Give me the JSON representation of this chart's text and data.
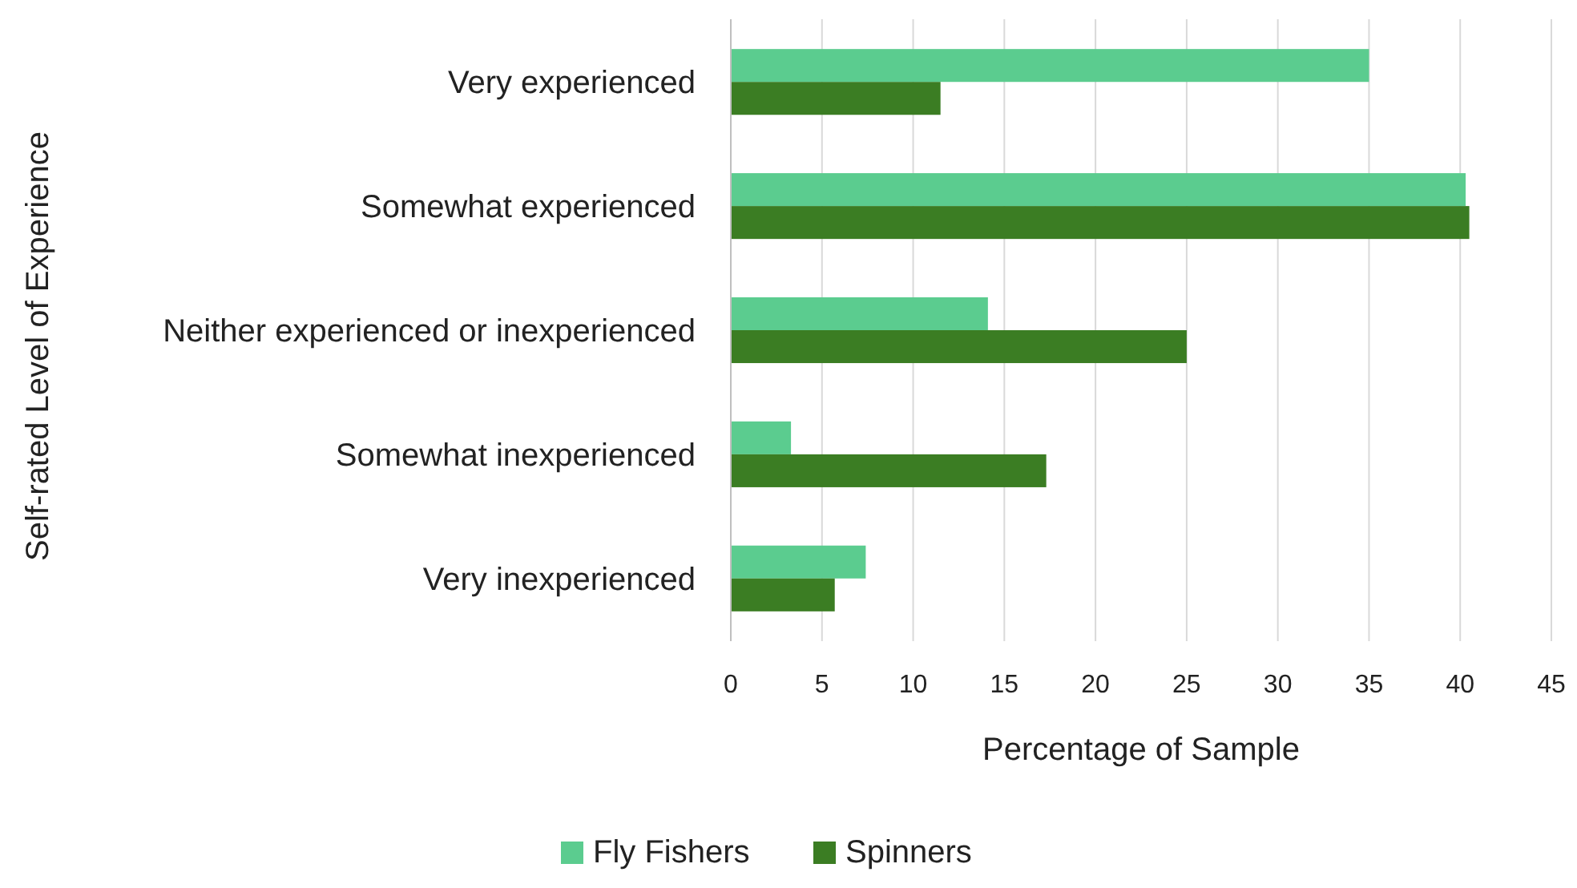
{
  "chart_data": {
    "type": "bar",
    "orientation": "horizontal",
    "xlabel": "Percentage of Sample",
    "ylabel": "Self-rated Level of Experience",
    "categories": [
      "Very experienced",
      "Somewhat experienced",
      "Neither experienced or inexperienced",
      "Somewhat inexperienced",
      "Very inexperienced"
    ],
    "series": [
      {
        "name": "Fly Fishers",
        "color": "#5bcc8f",
        "values": [
          35,
          40.3,
          14.1,
          3.3,
          7.4
        ]
      },
      {
        "name": "Spinners",
        "color": "#3b7d23",
        "values": [
          11.5,
          40.5,
          25,
          17.3,
          5.7
        ]
      }
    ],
    "xlim": [
      0,
      45
    ],
    "xticks": [
      0,
      5,
      10,
      15,
      20,
      25,
      30,
      35,
      40,
      45
    ],
    "grid": "x",
    "legend": "bottom"
  }
}
